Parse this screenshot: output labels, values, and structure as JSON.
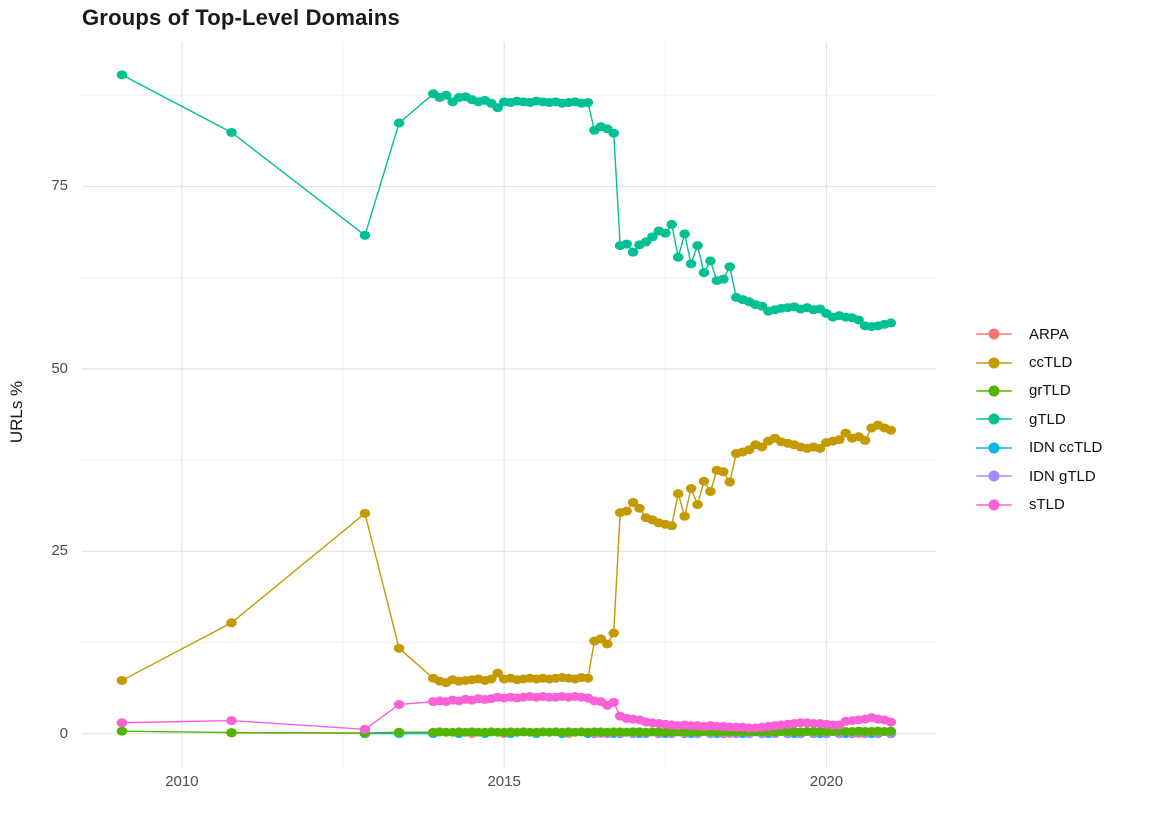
{
  "chart_data": {
    "type": "line",
    "title": "Groups of Top-Level Domains",
    "xlabel": "",
    "ylabel": "URLs %",
    "xlim": [
      2008.45,
      2021.7
    ],
    "ylim": [
      -4.7,
      94.8
    ],
    "x_ticks": [
      2010,
      2015,
      2020
    ],
    "x_tick_labels": [
      "2010",
      "2015",
      "2020"
    ],
    "x_minor_ticks": [
      2012.5,
      2017.5
    ],
    "y_ticks": [
      0,
      25,
      50,
      75
    ],
    "y_tick_labels": [
      "0",
      "25",
      "50",
      "75"
    ],
    "y_minor_ticks": [
      12.5,
      37.5,
      62.5,
      87.5
    ],
    "grid": "major+minor",
    "legend_position": "right",
    "colors": {
      "background": "#FFFFFF",
      "grid_major": "#E4E4E4",
      "grid_minor": "#F1F1F1",
      "tick_label": "#4D4D4D",
      "title": "#1A1A1A"
    },
    "series": [
      {
        "name": "ARPA",
        "color": "#F8766D",
        "x": [
          2010.77,
          2012.84,
          2013.9,
          2014.5,
          2015.0,
          2015.5,
          2016.0,
          2016.5,
          2017.0,
          2017.5,
          2018.0,
          2018.5,
          2019.0,
          2019.5,
          2020.0,
          2020.5,
          2021.0
        ],
        "y": [
          0.1,
          0.05,
          0.05,
          0.05,
          0.05,
          0.05,
          0.05,
          0.05,
          0.05,
          0.05,
          0.05,
          0.05,
          0.05,
          0.05,
          0.05,
          0.05,
          0.05
        ]
      },
      {
        "name": "ccTLD",
        "color": "#C49A00",
        "x": [
          2009.07,
          2010.77,
          2012.84,
          2013.37,
          2013.9,
          2014.0,
          2014.1,
          2014.2,
          2014.3,
          2014.4,
          2014.5,
          2014.6,
          2014.7,
          2014.8,
          2014.9,
          2015.0,
          2015.1,
          2015.2,
          2015.3,
          2015.4,
          2015.5,
          2015.6,
          2015.7,
          2015.8,
          2015.9,
          2016.0,
          2016.1,
          2016.2,
          2016.3,
          2016.4,
          2016.5,
          2016.6,
          2016.7,
          2016.8,
          2016.9,
          2017.0,
          2017.1,
          2017.2,
          2017.3,
          2017.4,
          2017.5,
          2017.6,
          2017.7,
          2017.8,
          2017.9,
          2018.0,
          2018.1,
          2018.2,
          2018.3,
          2018.4,
          2018.5,
          2018.6,
          2018.7,
          2018.8,
          2018.9,
          2019.0,
          2019.1,
          2019.2,
          2019.3,
          2019.4,
          2019.5,
          2019.6,
          2019.7,
          2019.8,
          2019.9,
          2020.0,
          2020.1,
          2020.2,
          2020.3,
          2020.4,
          2020.5,
          2020.6,
          2020.7,
          2020.8,
          2020.9,
          2021.0
        ],
        "y": [
          7.3,
          15.2,
          30.2,
          11.7,
          7.6,
          7.2,
          7.0,
          7.4,
          7.2,
          7.3,
          7.4,
          7.5,
          7.3,
          7.5,
          8.3,
          7.5,
          7.6,
          7.4,
          7.5,
          7.6,
          7.5,
          7.6,
          7.5,
          7.6,
          7.7,
          7.6,
          7.5,
          7.7,
          7.6,
          12.7,
          13.0,
          12.3,
          13.8,
          30.3,
          30.5,
          31.7,
          30.9,
          29.6,
          29.3,
          28.9,
          28.7,
          28.5,
          32.9,
          29.8,
          33.6,
          31.4,
          34.6,
          33.2,
          36.1,
          35.9,
          34.5,
          38.4,
          38.6,
          38.9,
          39.6,
          39.3,
          40.1,
          40.5,
          40.0,
          39.8,
          39.6,
          39.3,
          39.1,
          39.3,
          39.1,
          39.9,
          40.1,
          40.3,
          41.2,
          40.5,
          40.7,
          40.2,
          41.9,
          42.3,
          41.9,
          41.6
        ]
      },
      {
        "name": "grTLD",
        "color": "#53B400",
        "x": [
          2009.07,
          2010.77,
          2012.84,
          2013.37,
          2013.9,
          2014.0,
          2014.1,
          2014.2,
          2014.3,
          2014.4,
          2014.5,
          2014.6,
          2014.7,
          2014.8,
          2014.9,
          2015.0,
          2015.1,
          2015.2,
          2015.3,
          2015.4,
          2015.5,
          2015.6,
          2015.7,
          2015.8,
          2015.9,
          2016.0,
          2016.1,
          2016.2,
          2016.3,
          2016.4,
          2016.5,
          2016.6,
          2016.7,
          2016.8,
          2016.9,
          2017.0,
          2017.1,
          2017.2,
          2017.3,
          2017.4,
          2017.5,
          2017.6,
          2017.7,
          2017.8,
          2017.9,
          2018.0,
          2018.1,
          2018.2,
          2018.3,
          2018.4,
          2018.5,
          2018.6,
          2018.7,
          2018.8,
          2018.9,
          2019.0,
          2019.1,
          2019.2,
          2019.3,
          2019.4,
          2019.5,
          2019.6,
          2019.7,
          2019.8,
          2019.9,
          2020.0,
          2020.1,
          2020.2,
          2020.3,
          2020.4,
          2020.5,
          2020.6,
          2020.7,
          2020.8,
          2020.9,
          2021.0
        ],
        "y": [
          0.35,
          0.15,
          0.1,
          0.2,
          0.2,
          0.25,
          0.2,
          0.2,
          0.25,
          0.2,
          0.25,
          0.2,
          0.2,
          0.25,
          0.2,
          0.2,
          0.25,
          0.2,
          0.25,
          0.2,
          0.2,
          0.25,
          0.2,
          0.25,
          0.2,
          0.25,
          0.2,
          0.25,
          0.2,
          0.25,
          0.25,
          0.2,
          0.25,
          0.25,
          0.2,
          0.25,
          0.25,
          0.2,
          0.25,
          0.25,
          0.2,
          0.25,
          0.25,
          0.25,
          0.25,
          0.25,
          0.3,
          0.25,
          0.25,
          0.3,
          0.25,
          0.3,
          0.25,
          0.3,
          0.25,
          0.3,
          0.3,
          0.25,
          0.3,
          0.3,
          0.3,
          0.25,
          0.3,
          0.3,
          0.3,
          0.3,
          0.3,
          0.35,
          0.3,
          0.3,
          0.35,
          0.3,
          0.3,
          0.35,
          0.3,
          0.35
        ]
      },
      {
        "name": "gTLD",
        "color": "#00C094",
        "x": [
          2009.07,
          2010.77,
          2012.84,
          2013.37,
          2013.9,
          2014.0,
          2014.1,
          2014.2,
          2014.3,
          2014.4,
          2014.5,
          2014.6,
          2014.7,
          2014.8,
          2014.9,
          2015.0,
          2015.1,
          2015.2,
          2015.3,
          2015.4,
          2015.5,
          2015.6,
          2015.7,
          2015.8,
          2015.9,
          2016.0,
          2016.1,
          2016.2,
          2016.3,
          2016.4,
          2016.5,
          2016.6,
          2016.7,
          2016.8,
          2016.9,
          2017.0,
          2017.1,
          2017.2,
          2017.3,
          2017.4,
          2017.5,
          2017.6,
          2017.7,
          2017.8,
          2017.9,
          2018.0,
          2018.1,
          2018.2,
          2018.3,
          2018.4,
          2018.5,
          2018.6,
          2018.7,
          2018.8,
          2018.9,
          2019.0,
          2019.1,
          2019.2,
          2019.3,
          2019.4,
          2019.5,
          2019.6,
          2019.7,
          2019.8,
          2019.9,
          2020.0,
          2020.1,
          2020.2,
          2020.3,
          2020.4,
          2020.5,
          2020.6,
          2020.7,
          2020.8,
          2020.9,
          2021.0
        ],
        "y": [
          90.3,
          82.4,
          68.3,
          83.7,
          87.7,
          87.2,
          87.5,
          86.6,
          87.2,
          87.3,
          86.9,
          86.6,
          86.8,
          86.4,
          85.8,
          86.6,
          86.5,
          86.7,
          86.6,
          86.5,
          86.7,
          86.6,
          86.5,
          86.6,
          86.4,
          86.5,
          86.6,
          86.4,
          86.5,
          82.7,
          83.2,
          82.9,
          82.3,
          66.9,
          67.1,
          66.0,
          67.0,
          67.4,
          68.1,
          68.9,
          68.6,
          69.8,
          65.3,
          68.5,
          64.4,
          66.9,
          63.2,
          64.8,
          62.1,
          62.3,
          64.0,
          59.8,
          59.5,
          59.2,
          58.8,
          58.6,
          57.9,
          58.1,
          58.3,
          58.4,
          58.5,
          58.2,
          58.4,
          58.1,
          58.2,
          57.6,
          57.1,
          57.3,
          57.1,
          57.0,
          56.7,
          55.9,
          55.8,
          55.9,
          56.1,
          56.3
        ]
      },
      {
        "name": "IDN ccTLD",
        "color": "#00B6EB",
        "x": [
          2012.84,
          2013.37,
          2013.9,
          2014.3,
          2014.7,
          2015.1,
          2015.5,
          2015.9,
          2016.3,
          2016.7,
          2017.1,
          2017.5,
          2017.9,
          2018.3,
          2018.7,
          2019.1,
          2019.5,
          2019.9,
          2020.3,
          2020.7,
          2021.0
        ],
        "y": [
          0.02,
          0.02,
          0.02,
          0.02,
          0.02,
          0.02,
          0.02,
          0.02,
          0.02,
          0.02,
          0.02,
          0.02,
          0.02,
          0.02,
          0.02,
          0.02,
          0.02,
          0.02,
          0.02,
          0.02,
          0.02
        ]
      },
      {
        "name": "IDN gTLD",
        "color": "#A58AFF",
        "x": [
          2016.4,
          2016.6,
          2016.8,
          2017.0,
          2017.2,
          2017.4,
          2017.6,
          2017.8,
          2018.0,
          2018.2,
          2018.4,
          2018.6,
          2018.8,
          2019.0,
          2019.2,
          2019.4,
          2019.6,
          2019.8,
          2020.0,
          2020.2,
          2020.4,
          2020.6,
          2020.8,
          2021.0
        ],
        "y": [
          0.0,
          0.0,
          0.0,
          0.0,
          0.0,
          0.0,
          0.0,
          0.0,
          0.0,
          0.0,
          0.0,
          0.0,
          0.0,
          0.0,
          0.0,
          0.0,
          0.0,
          0.0,
          0.0,
          0.0,
          0.0,
          0.0,
          0.0,
          0.0
        ]
      },
      {
        "name": "sTLD",
        "color": "#FB61D7",
        "x": [
          2009.07,
          2010.77,
          2012.84,
          2013.37,
          2013.9,
          2014.0,
          2014.1,
          2014.2,
          2014.3,
          2014.4,
          2014.5,
          2014.6,
          2014.7,
          2014.8,
          2014.9,
          2015.0,
          2015.1,
          2015.2,
          2015.3,
          2015.4,
          2015.5,
          2015.6,
          2015.7,
          2015.8,
          2015.9,
          2016.0,
          2016.1,
          2016.2,
          2016.3,
          2016.4,
          2016.5,
          2016.6,
          2016.7,
          2016.8,
          2016.9,
          2017.0,
          2017.1,
          2017.2,
          2017.3,
          2017.4,
          2017.5,
          2017.6,
          2017.7,
          2017.8,
          2017.9,
          2018.0,
          2018.1,
          2018.2,
          2018.3,
          2018.4,
          2018.5,
          2018.6,
          2018.7,
          2018.8,
          2018.9,
          2019.0,
          2019.1,
          2019.2,
          2019.3,
          2019.4,
          2019.5,
          2019.6,
          2019.7,
          2019.8,
          2019.9,
          2020.0,
          2020.1,
          2020.2,
          2020.3,
          2020.4,
          2020.5,
          2020.6,
          2020.7,
          2020.8,
          2020.9,
          2021.0
        ],
        "y": [
          1.5,
          1.8,
          0.6,
          4.0,
          4.4,
          4.5,
          4.4,
          4.6,
          4.5,
          4.7,
          4.6,
          4.8,
          4.7,
          4.8,
          5.0,
          4.9,
          5.0,
          4.9,
          5.0,
          5.1,
          5.0,
          5.1,
          5.0,
          5.0,
          5.1,
          5.0,
          5.1,
          5.0,
          4.9,
          4.5,
          4.4,
          3.9,
          4.3,
          2.4,
          2.1,
          2.0,
          1.9,
          1.6,
          1.5,
          1.4,
          1.3,
          1.2,
          1.1,
          1.2,
          1.1,
          1.1,
          1.0,
          1.1,
          1.0,
          1.0,
          0.9,
          0.9,
          0.9,
          0.8,
          0.8,
          0.9,
          1.0,
          1.1,
          1.2,
          1.3,
          1.4,
          1.5,
          1.5,
          1.4,
          1.4,
          1.3,
          1.2,
          1.2,
          1.7,
          1.8,
          1.9,
          2.0,
          2.2,
          2.0,
          1.9,
          1.6
        ]
      }
    ]
  }
}
